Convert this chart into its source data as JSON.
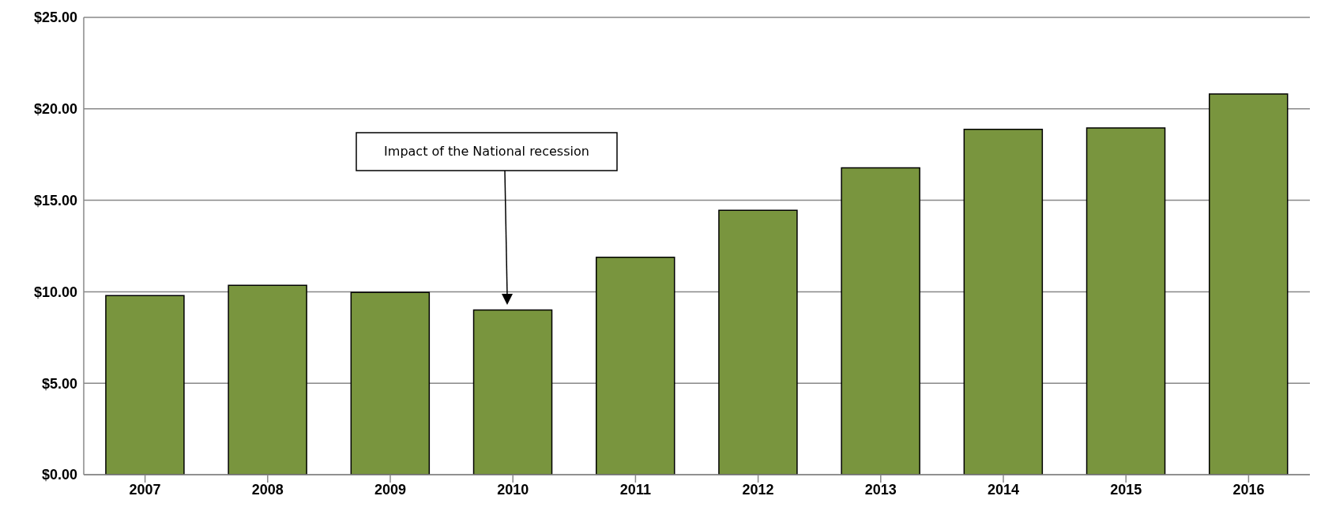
{
  "chart_data": {
    "type": "bar",
    "categories": [
      "2007",
      "2008",
      "2009",
      "2010",
      "2011",
      "2012",
      "2013",
      "2014",
      "2015",
      "2016"
    ],
    "values": [
      9.79,
      10.35,
      9.96,
      9.0,
      11.88,
      14.45,
      16.78,
      18.88,
      18.96,
      20.81
    ],
    "color": "#79953e",
    "ylim": [
      0,
      25
    ],
    "yticks": [
      {
        "value": 0,
        "label": "$0.00"
      },
      {
        "value": 5,
        "label": "$5.00"
      },
      {
        "value": 10,
        "label": "$10.00"
      },
      {
        "value": 15,
        "label": "$15.00"
      },
      {
        "value": 20,
        "label": "$20.00"
      },
      {
        "value": 25,
        "label": "$25.00"
      }
    ],
    "grid": "y",
    "annotations": [
      "Impact of the National recession"
    ]
  }
}
